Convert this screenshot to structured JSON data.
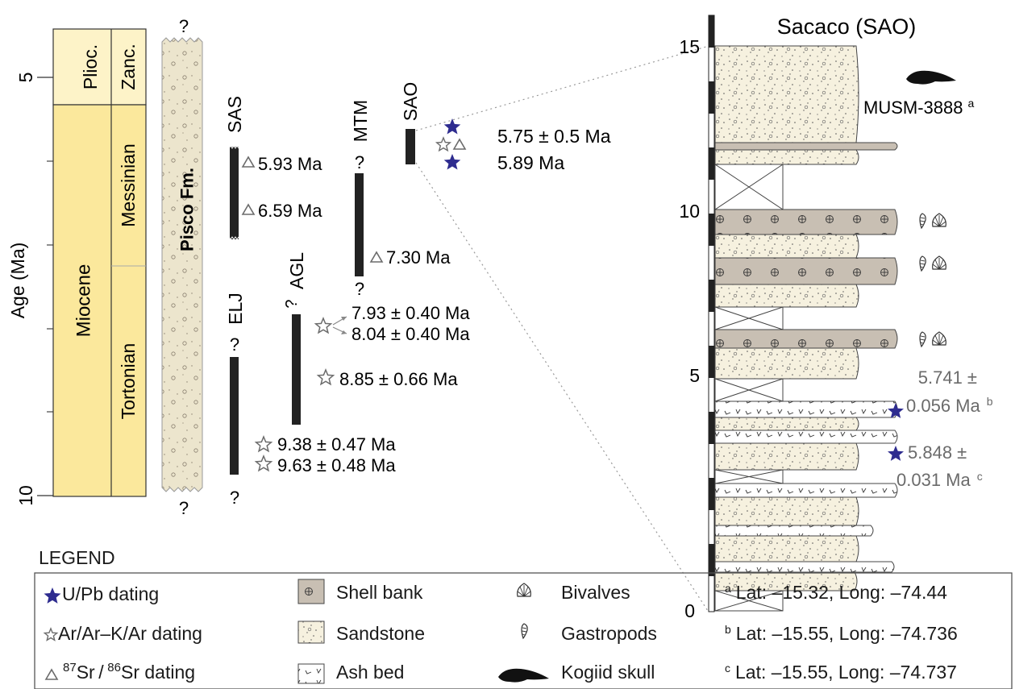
{
  "axis": {
    "label": "Age (Ma)",
    "ticks": [
      "5",
      "10"
    ]
  },
  "chronostrat": {
    "epochs": [
      "Plioc.",
      "Miocene"
    ],
    "stages": [
      "Zanc.",
      "Messinian",
      "Tortonian"
    ],
    "colors": {
      "pliocene": "#fdf3c8",
      "miocene": "#fbe89c"
    }
  },
  "formation": {
    "name": "Pisco Fm.",
    "question_top": "?",
    "question_bottom": "?"
  },
  "sections": [
    {
      "code": "SAS",
      "dates": [
        "5.93 Ma",
        "6.59 Ma"
      ],
      "date_symbol": "triangle"
    },
    {
      "code": "ELJ",
      "question_top": "?",
      "question_bottom": "?",
      "dates": [
        "9.38 ± 0.47 Ma",
        "9.63 ± 0.48 Ma"
      ],
      "date_symbol": "star-outline"
    },
    {
      "code": "AGL",
      "question_top": "?",
      "dates": [
        "7.93 ± 0.40 Ma",
        "8.04 ± 0.40 Ma",
        "8.85 ± 0.66 Ma"
      ],
      "date_symbol": "star-outline"
    },
    {
      "code": "MTM",
      "question_top": "?",
      "question_bottom": "?",
      "dates": [
        "7.30 Ma"
      ],
      "date_symbol": "triangle"
    },
    {
      "code": "SAO",
      "dates": [
        "5.75 ± 0.5 Ma",
        "5.89 Ma"
      ],
      "date_symbol": "mixed"
    }
  ],
  "sacaco": {
    "title": "Sacaco (SAO)",
    "scale_ticks": [
      "15",
      "10",
      "5",
      "0"
    ],
    "specimen": "MUSM-3888",
    "specimen_note": "a",
    "dates": [
      {
        "line1": "5.741 ±",
        "line2": "0.056 Ma",
        "note": "b"
      },
      {
        "line1": "5.848 ±",
        "line2": "0.031 Ma",
        "note": "c"
      }
    ]
  },
  "legend": {
    "title": "LEGEND",
    "col1": [
      "U/Pb dating",
      "Ar/Ar–K/Ar dating"
    ],
    "sr_label": {
      "prefix": "",
      "sup1": "87",
      "mid": "Sr / ",
      "sup2": "86",
      "suffix": "Sr dating"
    },
    "col2": [
      "Shell bank",
      "Sandstone",
      "Ash bed"
    ],
    "col3": [
      "Bivalves",
      "Gastropods",
      "Kogiid skull"
    ],
    "col4": [
      {
        "note": "a",
        "text": "Lat: –15.32, Long: –74.44"
      },
      {
        "note": "b",
        "text": "Lat: –15.55, Long: –74.736"
      },
      {
        "note": "c",
        "text": "Lat: –15.55, Long: –74.737"
      }
    ]
  },
  "colors": {
    "star_blue": "#2e2c8f",
    "grey_symbol": "#6b6b6b",
    "grey_text": "#6b6b6b",
    "shell_fill": "#c8bfb3",
    "sand_fill": "#f6f1df"
  }
}
